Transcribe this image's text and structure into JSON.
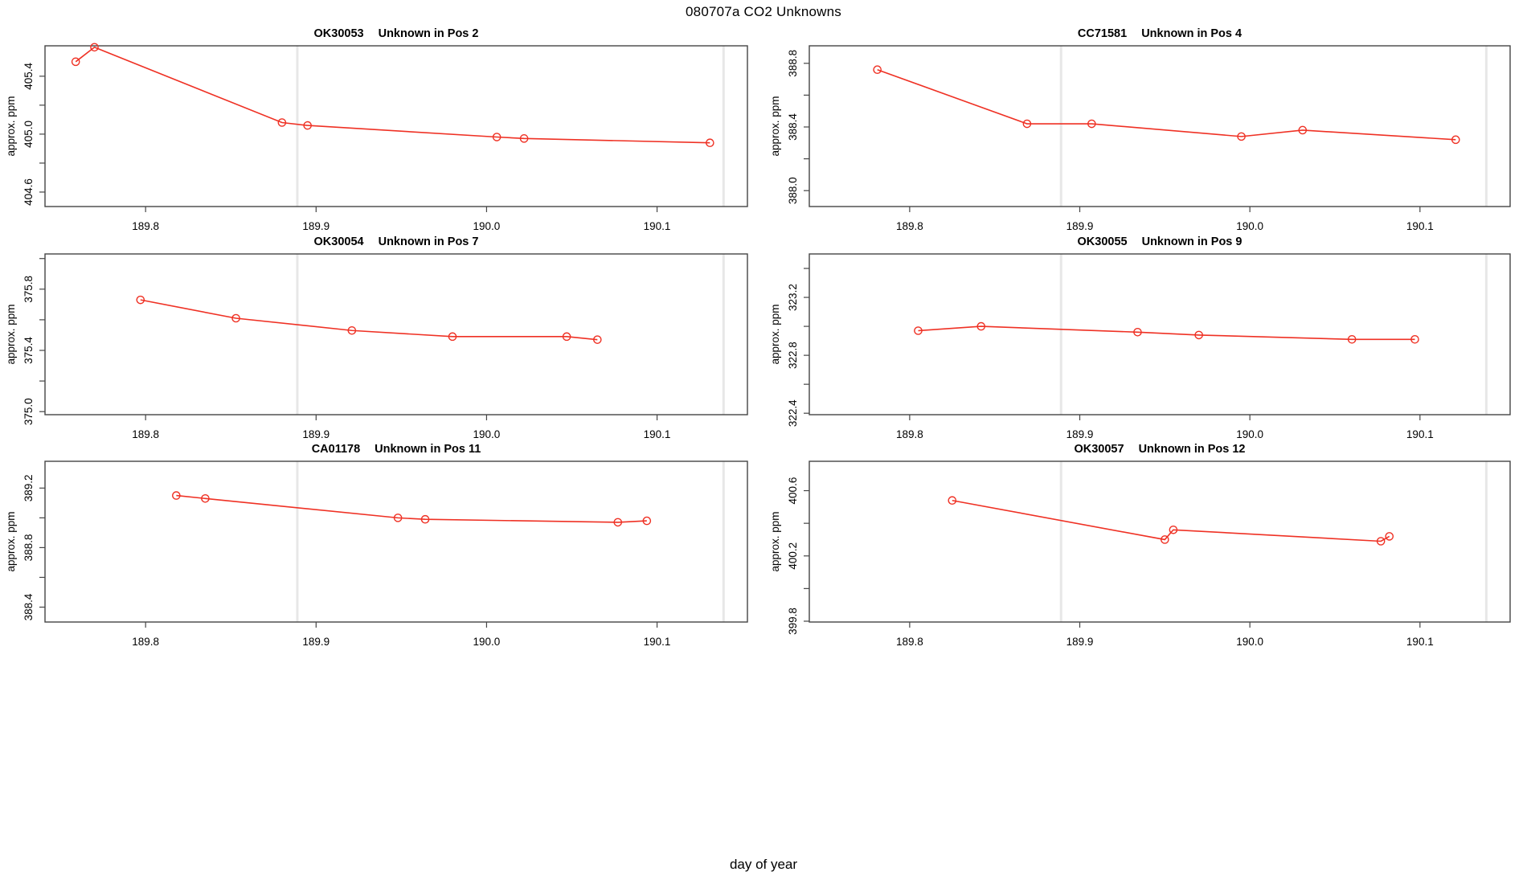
{
  "figure": {
    "title": "080707a  CO2 Unknowns",
    "xlabel": "day of year",
    "background": "#ffffff",
    "line_color": "#ef3124",
    "axis_color": "#454545",
    "gridline_color": "#e7e7e7",
    "text_color": "#000000"
  },
  "x_axis": {
    "lim": [
      189.741,
      190.153
    ],
    "ticks": [
      189.8,
      189.9,
      190.0,
      190.1
    ],
    "gridlines": [
      189.889,
      190.139
    ]
  },
  "chart_data": [
    {
      "type": "line",
      "sample_id": "OK30053",
      "subtitle": "Unknown in Pos 2",
      "ylabel": "approx. ppm",
      "ylim": [
        404.5,
        405.61
      ],
      "yticks": [
        404.6,
        405.0,
        405.4
      ],
      "yticks_minor": [
        404.8,
        405.2
      ],
      "x": [
        189.759,
        189.77,
        189.88,
        189.895,
        190.006,
        190.022,
        190.131
      ],
      "y": [
        405.5,
        405.6,
        405.08,
        405.06,
        404.98,
        404.97,
        404.94
      ],
      "marker": "open-circle"
    },
    {
      "type": "line",
      "sample_id": "CC71581",
      "subtitle": "Unknown in Pos 4",
      "ylabel": "approx. ppm",
      "ylim": [
        387.9,
        388.91
      ],
      "yticks": [
        388.0,
        388.4,
        388.8
      ],
      "yticks_minor": [
        388.2,
        388.6
      ],
      "x": [
        189.781,
        189.869,
        189.907,
        189.995,
        190.031,
        190.121
      ],
      "y": [
        388.76,
        388.42,
        388.42,
        388.34,
        388.38,
        388.32
      ],
      "marker": "open-circle"
    },
    {
      "type": "line",
      "sample_id": "OK30054",
      "subtitle": "Unknown in Pos 7",
      "ylabel": "approx. ppm",
      "ylim": [
        374.98,
        376.03
      ],
      "yticks": [
        375.0,
        375.4,
        375.8
      ],
      "yticks_minor": [
        375.2,
        375.6,
        376.0
      ],
      "x": [
        189.797,
        189.853,
        189.921,
        189.98,
        190.047,
        190.065
      ],
      "y": [
        375.73,
        375.61,
        375.53,
        375.49,
        375.49,
        375.47
      ],
      "marker": "open-circle"
    },
    {
      "type": "line",
      "sample_id": "OK30055",
      "subtitle": "Unknown in Pos 9",
      "ylabel": "approx. ppm",
      "ylim": [
        322.39,
        323.5
      ],
      "yticks": [
        322.4,
        322.8,
        323.2
      ],
      "yticks_minor": [
        322.6,
        323.0,
        323.4
      ],
      "x": [
        189.805,
        189.842,
        189.934,
        189.97,
        190.06,
        190.097
      ],
      "y": [
        322.97,
        323.0,
        322.96,
        322.94,
        322.91,
        322.91
      ],
      "marker": "open-circle"
    },
    {
      "type": "line",
      "sample_id": "CA01178",
      "subtitle": "Unknown in Pos 11",
      "ylabel": "approx. ppm",
      "ylim": [
        388.3,
        389.38
      ],
      "yticks": [
        388.4,
        388.8,
        389.2
      ],
      "yticks_minor": [
        388.6,
        389.0
      ],
      "x": [
        189.818,
        189.835,
        189.948,
        189.964,
        190.077,
        190.094
      ],
      "y": [
        389.15,
        389.13,
        389.0,
        388.99,
        388.97,
        388.98
      ],
      "marker": "open-circle"
    },
    {
      "type": "line",
      "sample_id": "OK30057",
      "subtitle": "Unknown in Pos 12",
      "ylabel": "approx. ppm",
      "ylim": [
        399.795,
        400.78
      ],
      "yticks": [
        399.8,
        400.2,
        400.6
      ],
      "yticks_minor": [
        400.0,
        400.4
      ],
      "x": [
        189.825,
        189.95,
        189.955,
        190.077,
        190.082
      ],
      "y": [
        400.54,
        400.3,
        400.36,
        400.29,
        400.32
      ],
      "marker": "open-circle"
    }
  ]
}
